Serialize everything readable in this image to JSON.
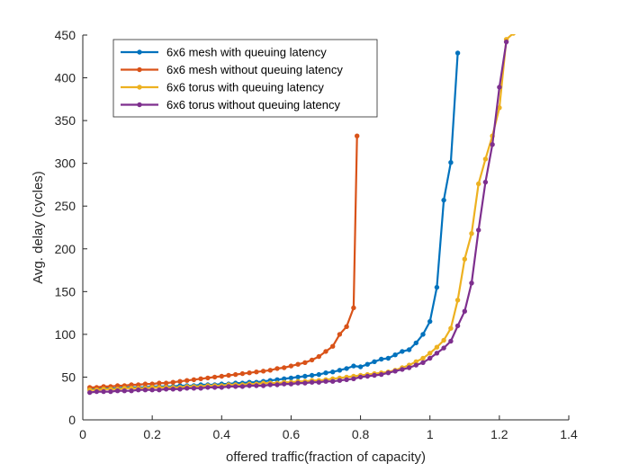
{
  "chart_data": {
    "type": "line",
    "title": "",
    "xlabel": "offered traffic(fraction of capacity)",
    "ylabel": "Avg. delay (cycles)",
    "xlim": [
      0,
      1.4
    ],
    "ylim": [
      0,
      450
    ],
    "xticks": [
      0,
      0.2,
      0.4,
      0.6,
      0.8,
      1,
      1.2,
      1.4
    ],
    "yticks": [
      0,
      50,
      100,
      150,
      200,
      250,
      300,
      350,
      400,
      450
    ],
    "xtick_labels": [
      "0",
      "0.2",
      "0.4",
      "0.6",
      "0.8",
      "1",
      "1.2",
      "1.4"
    ],
    "ytick_labels": [
      "0",
      "50",
      "100",
      "150",
      "200",
      "250",
      "300",
      "350",
      "400",
      "450"
    ],
    "grid": false,
    "legend_position": "top-left",
    "series": [
      {
        "name": "6x6 mesh with queuing latency",
        "color": "#0072BD",
        "x": [
          0.02,
          0.04,
          0.06,
          0.08,
          0.1,
          0.12,
          0.14,
          0.16,
          0.18,
          0.2,
          0.22,
          0.24,
          0.26,
          0.28,
          0.3,
          0.32,
          0.34,
          0.36,
          0.38,
          0.4,
          0.42,
          0.44,
          0.46,
          0.48,
          0.5,
          0.52,
          0.54,
          0.56,
          0.58,
          0.6,
          0.62,
          0.64,
          0.66,
          0.68,
          0.7,
          0.72,
          0.74,
          0.76,
          0.78,
          0.8,
          0.82,
          0.84,
          0.86,
          0.88,
          0.9,
          0.92,
          0.94,
          0.96,
          0.98,
          1.0,
          1.02,
          1.04,
          1.06,
          1.08
        ],
        "y": [
          36,
          37,
          37,
          37,
          37,
          38,
          38,
          38,
          38,
          39,
          39,
          39,
          39,
          40,
          40,
          40,
          41,
          41,
          41,
          42,
          42,
          43,
          43,
          44,
          44,
          45,
          46,
          47,
          48,
          49,
          50,
          51,
          52,
          53,
          55,
          56,
          58,
          60,
          63,
          62,
          65,
          68,
          71,
          72,
          76,
          80,
          82,
          90,
          100,
          115,
          155,
          257,
          301,
          429
        ]
      },
      {
        "name": "6x6 mesh without queuing latency",
        "color": "#D95319",
        "x": [
          0.02,
          0.04,
          0.06,
          0.08,
          0.1,
          0.12,
          0.14,
          0.16,
          0.18,
          0.2,
          0.22,
          0.24,
          0.26,
          0.28,
          0.3,
          0.32,
          0.34,
          0.36,
          0.38,
          0.4,
          0.42,
          0.44,
          0.46,
          0.48,
          0.5,
          0.52,
          0.54,
          0.56,
          0.58,
          0.6,
          0.62,
          0.64,
          0.66,
          0.68,
          0.7,
          0.72,
          0.74,
          0.76,
          0.78,
          0.79
        ],
        "y": [
          38,
          38,
          39,
          39,
          40,
          40,
          41,
          41,
          42,
          42,
          43,
          43,
          44,
          45,
          46,
          47,
          48,
          49,
          50,
          51,
          52,
          53,
          54,
          55,
          56,
          57,
          58,
          60,
          61,
          63,
          65,
          67,
          70,
          74,
          80,
          86,
          100,
          109,
          131,
          332
        ]
      },
      {
        "name": "6x6 torus with queuing latency",
        "color": "#EDB120",
        "x": [
          0.02,
          0.04,
          0.06,
          0.08,
          0.1,
          0.12,
          0.14,
          0.16,
          0.18,
          0.2,
          0.22,
          0.24,
          0.26,
          0.28,
          0.3,
          0.32,
          0.34,
          0.36,
          0.38,
          0.4,
          0.42,
          0.44,
          0.46,
          0.48,
          0.5,
          0.52,
          0.54,
          0.56,
          0.58,
          0.6,
          0.62,
          0.64,
          0.66,
          0.68,
          0.7,
          0.72,
          0.74,
          0.76,
          0.78,
          0.8,
          0.82,
          0.84,
          0.86,
          0.88,
          0.9,
          0.92,
          0.94,
          0.96,
          0.98,
          1.0,
          1.02,
          1.04,
          1.06,
          1.08,
          1.1,
          1.12,
          1.14,
          1.16,
          1.18,
          1.2,
          1.22,
          1.24
        ],
        "y": [
          35,
          35,
          36,
          36,
          36,
          37,
          37,
          37,
          37,
          38,
          38,
          38,
          38,
          38,
          39,
          39,
          39,
          40,
          40,
          40,
          41,
          41,
          41,
          42,
          42,
          43,
          43,
          43,
          44,
          44,
          45,
          45,
          46,
          46,
          47,
          48,
          49,
          50,
          51,
          52,
          53,
          54,
          55,
          56,
          58,
          61,
          64,
          68,
          72,
          78,
          85,
          93,
          107,
          140,
          188,
          218,
          276,
          305,
          332,
          365,
          445,
          452
        ]
      },
      {
        "name": "6x6 torus without queuing latency",
        "color": "#7E2F8E",
        "x": [
          0.02,
          0.04,
          0.06,
          0.08,
          0.1,
          0.12,
          0.14,
          0.16,
          0.18,
          0.2,
          0.22,
          0.24,
          0.26,
          0.28,
          0.3,
          0.32,
          0.34,
          0.36,
          0.38,
          0.4,
          0.42,
          0.44,
          0.46,
          0.48,
          0.5,
          0.52,
          0.54,
          0.56,
          0.58,
          0.6,
          0.62,
          0.64,
          0.66,
          0.68,
          0.7,
          0.72,
          0.74,
          0.76,
          0.78,
          0.8,
          0.82,
          0.84,
          0.86,
          0.88,
          0.9,
          0.92,
          0.94,
          0.96,
          0.98,
          1.0,
          1.02,
          1.04,
          1.06,
          1.08,
          1.1,
          1.12,
          1.14,
          1.16,
          1.18,
          1.2,
          1.22
        ],
        "y": [
          32,
          33,
          33,
          33,
          34,
          34,
          34,
          35,
          35,
          35,
          35,
          36,
          36,
          36,
          37,
          37,
          37,
          38,
          38,
          38,
          39,
          39,
          39,
          40,
          40,
          40,
          41,
          41,
          42,
          42,
          43,
          43,
          44,
          44,
          45,
          45,
          46,
          47,
          48,
          50,
          51,
          52,
          53,
          55,
          57,
          59,
          61,
          64,
          67,
          72,
          78,
          84,
          92,
          110,
          127,
          160,
          222,
          278,
          322,
          389,
          442
        ]
      }
    ]
  }
}
